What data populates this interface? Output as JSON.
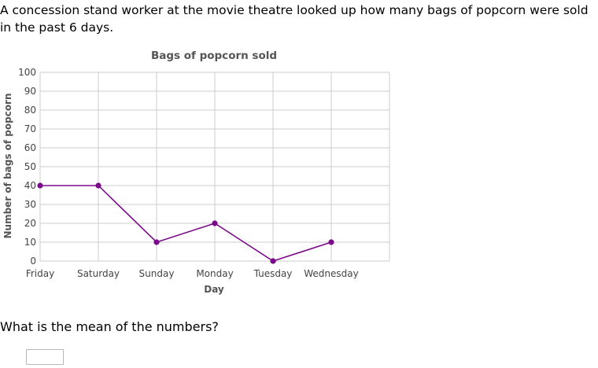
{
  "intro_text": "A concession stand worker at the movie theatre looked up how many bags of popcorn were sold in the past 6 days.",
  "question_text": "What is the mean of the numbers?",
  "answer": {
    "value": ""
  },
  "colors": {
    "line": "#7b0a8a",
    "grid": "#cccccc",
    "text": "#555555"
  },
  "chart_data": {
    "type": "line",
    "title": "Bags of popcorn sold",
    "xlabel": "Day",
    "ylabel": "Number of bags of popcorn",
    "categories": [
      "Friday",
      "Saturday",
      "Sunday",
      "Monday",
      "Tuesday",
      "Wednesday"
    ],
    "values": [
      40,
      40,
      10,
      20,
      0,
      10
    ],
    "ylim": [
      0,
      100
    ],
    "yticks": [
      0,
      10,
      20,
      30,
      40,
      50,
      60,
      70,
      80,
      90,
      100
    ],
    "grid": true
  }
}
